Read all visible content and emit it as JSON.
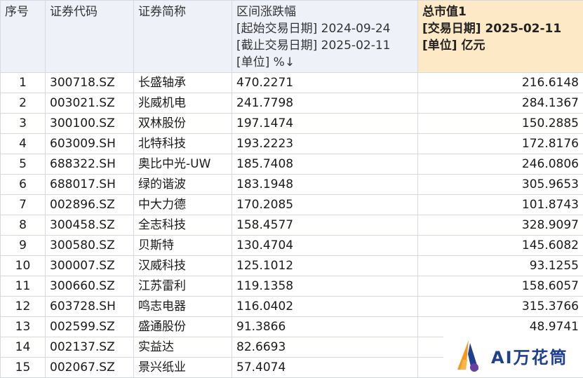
{
  "header": {
    "idx": "序号",
    "code": "证券代码",
    "name": "证券简称",
    "change": [
      "区间涨跌幅",
      "[起始交易日期] 2024-09-24",
      "[截止交易日期] 2025-02-11",
      "[单位] %↓"
    ],
    "cap": [
      "总市值1",
      "[交易日期] 2025-02-11",
      "[单位] 亿元"
    ]
  },
  "rows": [
    {
      "idx": "1",
      "code": "300718.SZ",
      "name": "长盛轴承",
      "change": "470.2271",
      "cap": "216.6148"
    },
    {
      "idx": "2",
      "code": "003021.SZ",
      "name": "兆威机电",
      "change": "241.7798",
      "cap": "284.1367"
    },
    {
      "idx": "3",
      "code": "300100.SZ",
      "name": "双林股份",
      "change": "197.1474",
      "cap": "150.2885"
    },
    {
      "idx": "4",
      "code": "603009.SH",
      "name": "北特科技",
      "change": "193.2223",
      "cap": "172.8176"
    },
    {
      "idx": "5",
      "code": "688322.SH",
      "name": "奥比中光-UW",
      "change": "185.7408",
      "cap": "246.0806"
    },
    {
      "idx": "6",
      "code": "688017.SH",
      "name": "绿的谐波",
      "change": "183.1948",
      "cap": "305.9653"
    },
    {
      "idx": "7",
      "code": "002896.SZ",
      "name": "中大力德",
      "change": "170.2085",
      "cap": "101.8743"
    },
    {
      "idx": "8",
      "code": "300458.SZ",
      "name": "全志科技",
      "change": "158.4577",
      "cap": "328.9097"
    },
    {
      "idx": "9",
      "code": "300580.SZ",
      "name": "贝斯特",
      "change": "130.4704",
      "cap": "145.6082"
    },
    {
      "idx": "10",
      "code": "300007.SZ",
      "name": "汉威科技",
      "change": "125.1012",
      "cap": "93.1255"
    },
    {
      "idx": "11",
      "code": "300660.SZ",
      "name": "江苏雷利",
      "change": "119.1358",
      "cap": "158.6057"
    },
    {
      "idx": "12",
      "code": "603728.SH",
      "name": "鸣志电器",
      "change": "116.0402",
      "cap": "315.3766"
    },
    {
      "idx": "13",
      "code": "002599.SZ",
      "name": "盛通股份",
      "change": "91.3866",
      "cap": "48.9741"
    },
    {
      "idx": "14",
      "code": "002137.SZ",
      "name": "实益达",
      "change": "82.6693",
      "cap": ""
    },
    {
      "idx": "15",
      "code": "002067.SZ",
      "name": "景兴纸业",
      "change": "57.4074",
      "cap": ""
    }
  ],
  "watermark": {
    "text": "AI万花筒",
    "colors": {
      "orange": "#f39a1e",
      "blue": "#1f3f8f",
      "purple": "#6b3fa0"
    }
  },
  "colors": {
    "header_bg": "#eef1f7",
    "highlight_header_bg": "#fde9c6",
    "grid_line": "#d4d9e2"
  }
}
